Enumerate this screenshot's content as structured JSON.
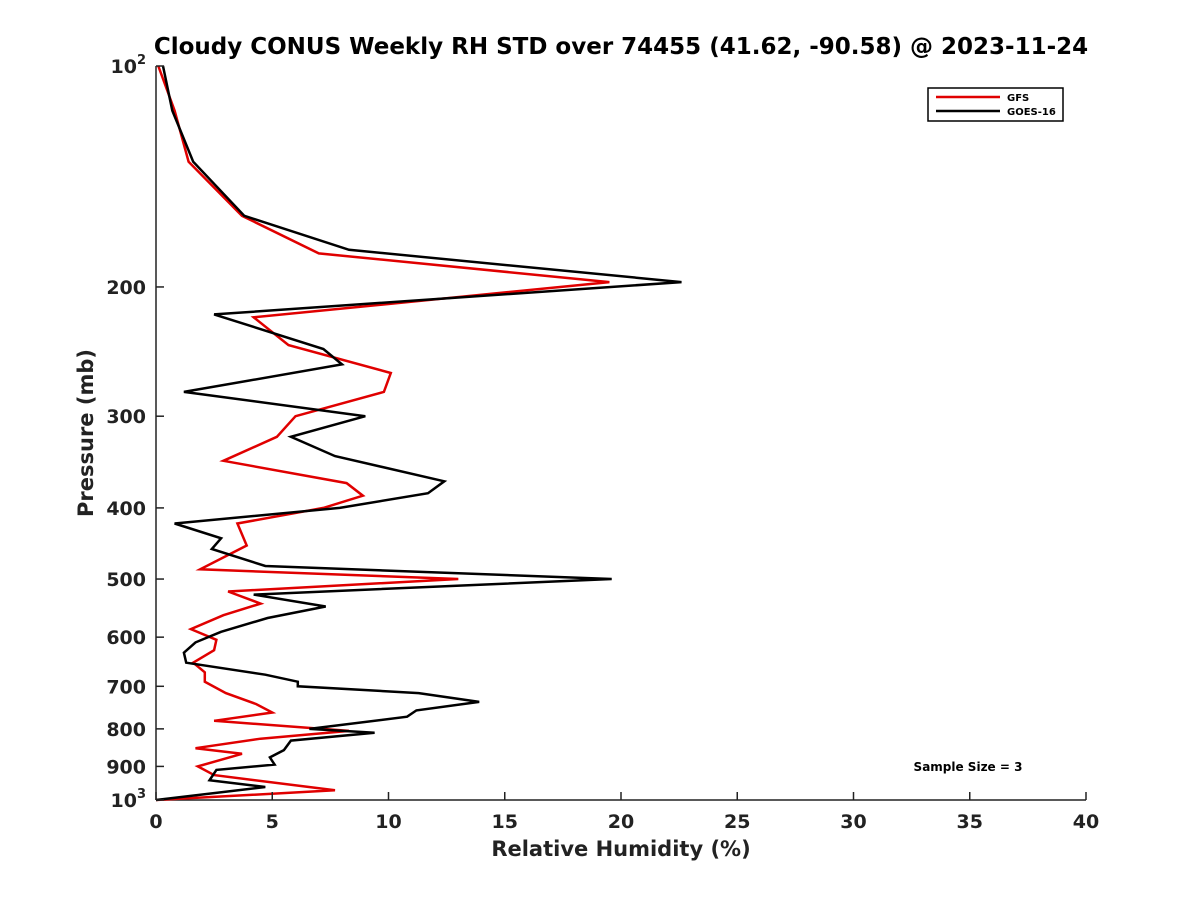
{
  "chart_data": {
    "type": "line",
    "title": "Cloudy CONUS Weekly RH STD over 74455 (41.62, -90.58) @ 2023-11-24",
    "xlabel": "Relative Humidity (%)",
    "ylabel": "Pressure (mb)",
    "xlim": [
      0,
      40
    ],
    "ylim": [
      100,
      1000
    ],
    "y_scale": "log",
    "y_reversed": true,
    "x_ticks": [
      0,
      5,
      10,
      15,
      20,
      25,
      30,
      35,
      40
    ],
    "x_tick_labels": [
      "0",
      "5",
      "10",
      "15",
      "20",
      "25",
      "30",
      "35",
      "40"
    ],
    "y_ticks": [
      100,
      200,
      300,
      400,
      500,
      600,
      700,
      800,
      900,
      1000
    ],
    "y_tick_labels": [
      {
        "base": "10",
        "sup": "2"
      },
      {
        "base": "200",
        "sup": ""
      },
      {
        "base": "300",
        "sup": ""
      },
      {
        "base": "400",
        "sup": ""
      },
      {
        "base": "500",
        "sup": ""
      },
      {
        "base": "600",
        "sup": ""
      },
      {
        "base": "700",
        "sup": ""
      },
      {
        "base": "800",
        "sup": ""
      },
      {
        "base": "900",
        "sup": ""
      },
      {
        "base": "10",
        "sup": "3"
      }
    ],
    "legend_position": "top-right",
    "grid": false,
    "annotation": "Sample Size = 3",
    "series": [
      {
        "name": "GFS",
        "color": "#e00000",
        "points": [
          [
            0.1,
            100
          ],
          [
            0.8,
            115
          ],
          [
            1.4,
            135
          ],
          [
            3.7,
            160
          ],
          [
            7.0,
            180
          ],
          [
            19.5,
            197
          ],
          [
            4.2,
            220
          ],
          [
            5.7,
            240
          ],
          [
            10.1,
            262
          ],
          [
            9.8,
            278
          ],
          [
            6.0,
            300
          ],
          [
            5.2,
            320
          ],
          [
            2.9,
            345
          ],
          [
            8.2,
            370
          ],
          [
            8.9,
            385
          ],
          [
            7.2,
            400
          ],
          [
            3.5,
            420
          ],
          [
            3.9,
            450
          ],
          [
            1.9,
            485
          ],
          [
            13.0,
            500
          ],
          [
            3.1,
            520
          ],
          [
            4.5,
            540
          ],
          [
            2.9,
            560
          ],
          [
            1.5,
            585
          ],
          [
            2.6,
            605
          ],
          [
            2.5,
            625
          ],
          [
            1.6,
            650
          ],
          [
            2.1,
            670
          ],
          [
            2.1,
            690
          ],
          [
            3.0,
            715
          ],
          [
            4.3,
            740
          ],
          [
            5.0,
            760
          ],
          [
            2.5,
            780
          ],
          [
            8.3,
            805
          ],
          [
            4.5,
            825
          ],
          [
            1.7,
            850
          ],
          [
            3.7,
            865
          ],
          [
            1.8,
            900
          ],
          [
            2.5,
            925
          ],
          [
            7.7,
            970
          ],
          [
            0.0,
            1000
          ]
        ]
      },
      {
        "name": "GOES-16",
        "color": "#000000",
        "points": [
          [
            0.3,
            100
          ],
          [
            0.7,
            115
          ],
          [
            1.6,
            135
          ],
          [
            3.8,
            160
          ],
          [
            8.3,
            178
          ],
          [
            22.6,
            197
          ],
          [
            2.5,
            218
          ],
          [
            7.2,
            243
          ],
          [
            8.0,
            255
          ],
          [
            1.2,
            278
          ],
          [
            9.0,
            300
          ],
          [
            5.8,
            320
          ],
          [
            7.7,
            340
          ],
          [
            12.4,
            368
          ],
          [
            11.7,
            382
          ],
          [
            7.9,
            400
          ],
          [
            0.8,
            420
          ],
          [
            2.8,
            440
          ],
          [
            2.4,
            455
          ],
          [
            4.7,
            480
          ],
          [
            19.6,
            500
          ],
          [
            4.2,
            525
          ],
          [
            7.3,
            545
          ],
          [
            4.8,
            565
          ],
          [
            2.8,
            590
          ],
          [
            1.7,
            610
          ],
          [
            1.2,
            630
          ],
          [
            1.3,
            650
          ],
          [
            4.7,
            675
          ],
          [
            6.1,
            690
          ],
          [
            6.1,
            700
          ],
          [
            11.3,
            715
          ],
          [
            13.9,
            735
          ],
          [
            11.2,
            755
          ],
          [
            10.8,
            770
          ],
          [
            6.6,
            800
          ],
          [
            9.4,
            810
          ],
          [
            5.8,
            830
          ],
          [
            5.5,
            855
          ],
          [
            4.9,
            875
          ],
          [
            5.1,
            895
          ],
          [
            2.6,
            910
          ],
          [
            2.3,
            940
          ],
          [
            4.7,
            960
          ],
          [
            0.0,
            1000
          ]
        ]
      }
    ]
  }
}
